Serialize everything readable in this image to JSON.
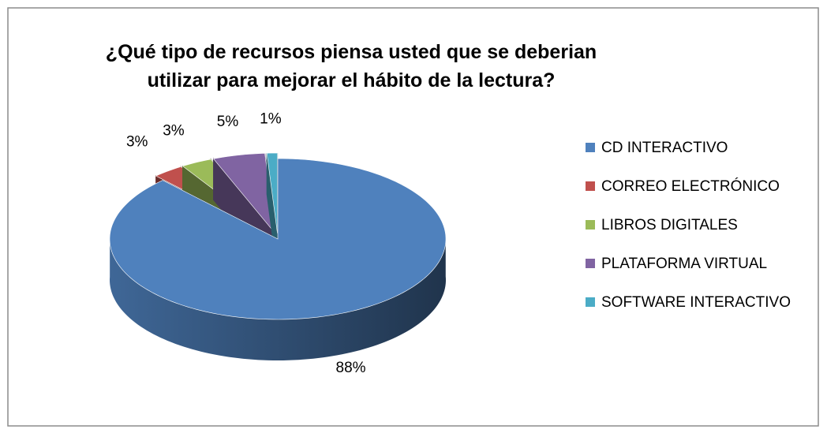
{
  "chart_data": {
    "type": "pie3d",
    "title": "¿Qué tipo de recursos piensa usted que se deberian utilizar para mejorar el hábito de la lectura?",
    "categories": [
      "CD INTERACTIVO",
      "CORREO ELECTRÓNICO",
      "LIBROS DIGITALES",
      "PLATAFORMA VIRTUAL",
      "SOFTWARE INTERACTIVO"
    ],
    "values": [
      88,
      3,
      3,
      5,
      1
    ],
    "value_labels": [
      "88%",
      "3%",
      "3%",
      "5%",
      "1%"
    ],
    "colors": [
      "#4f81bd",
      "#c0504d",
      "#9bbb59",
      "#8064a2",
      "#4bacc6"
    ],
    "legend": "right"
  }
}
